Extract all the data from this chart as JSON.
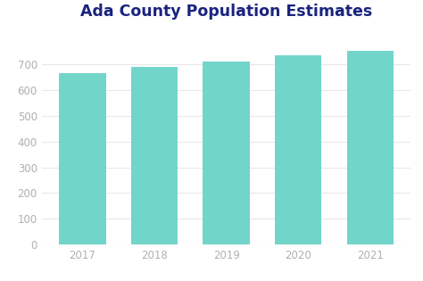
{
  "title": "Ada County Population Estimates",
  "categories": [
    "2017",
    "2018",
    "2019",
    "2020",
    "2021"
  ],
  "values": [
    665,
    690,
    713,
    735,
    755
  ],
  "bar_color": "#72D5CA",
  "background_color": "#ffffff",
  "title_color": "#1a237e",
  "tick_label_color": "#b0b0b0",
  "grid_color": "#e8e8e8",
  "ylim": [
    0,
    820
  ],
  "yticks": [
    0,
    100,
    200,
    300,
    400,
    500,
    600,
    700
  ],
  "title_fontsize": 12.5,
  "tick_fontsize": 8.5,
  "bar_width": 0.65
}
